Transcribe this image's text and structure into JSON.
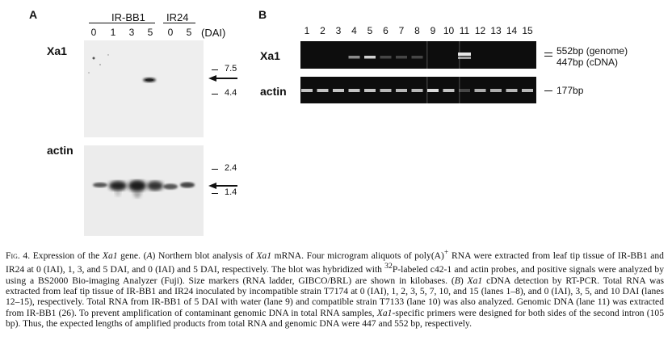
{
  "panel_a": {
    "letter": "A",
    "group1_label": "IR-BB1",
    "group2_label": "IR24",
    "lane_labels": [
      "0",
      "1",
      "3",
      "5",
      "0",
      "5"
    ],
    "unit_label": "(DAI)",
    "blot1_label": "Xa1",
    "blot2_label": "actin",
    "blot1_markers": [
      "7.5",
      "4.4"
    ],
    "blot2_markers": [
      "2.4",
      "1.4"
    ]
  },
  "panel_b": {
    "letter": "B",
    "lane_labels": [
      "1",
      "2",
      "3",
      "4",
      "5",
      "6",
      "7",
      "8",
      "9",
      "10",
      "11",
      "12",
      "13",
      "14",
      "15"
    ],
    "gel1_label": "Xa1",
    "gel2_label": "actin",
    "gel1_bands": [
      "552bp (genome)",
      "447bp (cDNA)"
    ],
    "gel2_band": "177bp"
  },
  "caption": {
    "fig_label": "Fig. 4.",
    "p01": " Expression of the ",
    "p02": "Xa1",
    "p03": " gene. (",
    "p04": "A",
    "p05": ") Northern blot analysis of ",
    "p06": "Xa1",
    "p07": " mRNA. Four microgram aliquots of poly(A)",
    "p08": "+",
    "p09": " RNA were extracted from leaf tip tissue of IR-BB1 and IR24 at 0 (IAI), 1, 3, and 5 DAI, and 0 (IAI) and 5 DAI, respectively. The blot was hybridized with ",
    "p10": "32",
    "p11": "P-labeled c42-1 and actin probes, and positive signals were analyzed by using a BS2000 Bio-imaging Analyzer (Fuji). Size markers (RNA ladder, GIBCO/BRL) are shown in kilobases. (",
    "p12": "B",
    "p13": ") ",
    "p14": "Xa1",
    "p15": " cDNA detection by RT-PCR. Total RNA was extracted from leaf tip tissue of IR-BB1 and IR24 inoculated by incompatible strain T7174 at 0 (IAI), 1, 2, 3, 5, 7, 10, and 15 (lanes 1–8), and 0 (IAI), 3, 5, and 10 DAI (lanes 12–15), respectively. Total RNA from IR-BB1 of 5 DAI with water (lane 9) and compatible strain T7133 (lane 10) was also analyzed. Genomic DNA (lane 11) was extracted from IR-BB1 (26). To prevent amplification of contaminant genomic DNA in total RNA samples, ",
    "p16": "Xa1",
    "p17": "-specific primers were designed for both sides of the second intron (105 bp). Thus, the expected lengths of amplified products from total RNA and genomic DNA were 447 and 552 bp, respectively."
  }
}
